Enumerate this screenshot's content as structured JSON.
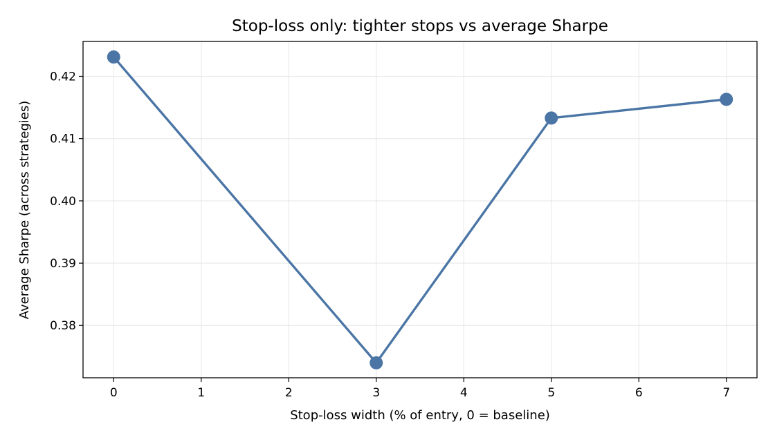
{
  "chart_data": {
    "type": "line",
    "title": "Stop-loss only: tighter stops vs average Sharpe",
    "xlabel": "Stop-loss width (% of entry, 0 = baseline)",
    "ylabel": "Average Sharpe (across strategies)",
    "xlim": [
      -0.35,
      7.35
    ],
    "ylim": [
      0.3716,
      0.4256
    ],
    "x_ticks": [
      0,
      1,
      2,
      3,
      4,
      5,
      6,
      7
    ],
    "y_ticks": [
      0.38,
      0.39,
      0.4,
      0.41,
      0.42
    ],
    "y_tick_labels": [
      "0.38",
      "0.39",
      "0.40",
      "0.41",
      "0.42"
    ],
    "grid": true,
    "series": [
      {
        "color": "#4a75a5",
        "marker": "circle",
        "x": [
          0,
          3,
          5,
          7
        ],
        "y": [
          0.4231,
          0.374,
          0.4133,
          0.4163
        ]
      }
    ]
  }
}
